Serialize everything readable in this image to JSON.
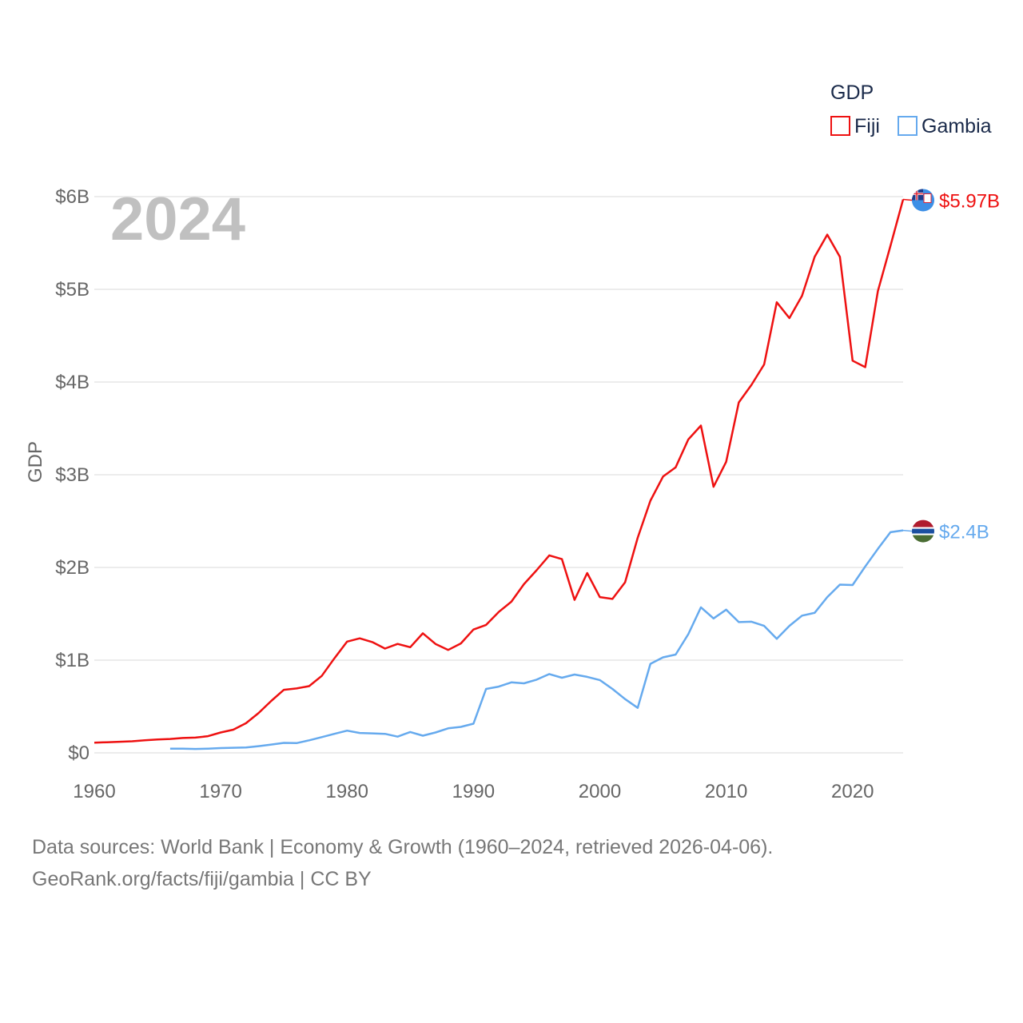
{
  "chart_data": {
    "type": "line",
    "title": "GDP",
    "current_year": "2024",
    "ylabel": "GDP",
    "xlabel": "",
    "xlim": [
      1960,
      2024
    ],
    "ylim": [
      0,
      6
    ],
    "unit": "billions USD",
    "x_ticks": [
      "1960",
      "1970",
      "1980",
      "1990",
      "2000",
      "2010",
      "2020"
    ],
    "x_tick_values": [
      1960,
      1970,
      1980,
      1990,
      2000,
      2010,
      2020
    ],
    "y_ticks": [
      "$0",
      "$1B",
      "$2B",
      "$3B",
      "$4B",
      "$5B",
      "$6B"
    ],
    "y_tick_values": [
      0,
      1,
      2,
      3,
      4,
      5,
      6
    ],
    "legend_position": "top-right",
    "series": [
      {
        "name": "Fiji",
        "color": "#ee1111",
        "end_label": "$5.97B",
        "flag_icon": "fiji-flag-icon",
        "points": [
          [
            1960,
            0.11
          ],
          [
            1961,
            0.115
          ],
          [
            1962,
            0.12
          ],
          [
            1963,
            0.125
          ],
          [
            1964,
            0.135
          ],
          [
            1965,
            0.145
          ],
          [
            1966,
            0.15
          ],
          [
            1967,
            0.16
          ],
          [
            1968,
            0.165
          ],
          [
            1969,
            0.18
          ],
          [
            1970,
            0.22
          ],
          [
            1971,
            0.25
          ],
          [
            1972,
            0.32
          ],
          [
            1973,
            0.43
          ],
          [
            1974,
            0.56
          ],
          [
            1975,
            0.68
          ],
          [
            1976,
            0.695
          ],
          [
            1977,
            0.72
          ],
          [
            1978,
            0.83
          ],
          [
            1979,
            1.02
          ],
          [
            1980,
            1.2
          ],
          [
            1981,
            1.235
          ],
          [
            1982,
            1.195
          ],
          [
            1983,
            1.125
          ],
          [
            1984,
            1.175
          ],
          [
            1985,
            1.14
          ],
          [
            1986,
            1.29
          ],
          [
            1987,
            1.175
          ],
          [
            1988,
            1.11
          ],
          [
            1989,
            1.18
          ],
          [
            1990,
            1.33
          ],
          [
            1991,
            1.38
          ],
          [
            1992,
            1.52
          ],
          [
            1993,
            1.63
          ],
          [
            1994,
            1.82
          ],
          [
            1995,
            1.97
          ],
          [
            1996,
            2.13
          ],
          [
            1997,
            2.09
          ],
          [
            1998,
            1.65
          ],
          [
            1999,
            1.94
          ],
          [
            2000,
            1.68
          ],
          [
            2001,
            1.66
          ],
          [
            2002,
            1.84
          ],
          [
            2003,
            2.32
          ],
          [
            2004,
            2.72
          ],
          [
            2005,
            2.98
          ],
          [
            2006,
            3.08
          ],
          [
            2007,
            3.38
          ],
          [
            2008,
            3.53
          ],
          [
            2009,
            2.87
          ],
          [
            2010,
            3.14
          ],
          [
            2011,
            3.78
          ],
          [
            2012,
            3.97
          ],
          [
            2013,
            4.19
          ],
          [
            2014,
            4.86
          ],
          [
            2015,
            4.69
          ],
          [
            2016,
            4.93
          ],
          [
            2017,
            5.35
          ],
          [
            2018,
            5.59
          ],
          [
            2019,
            5.35
          ],
          [
            2020,
            4.23
          ],
          [
            2021,
            4.16
          ],
          [
            2022,
            4.98
          ],
          [
            2023,
            5.47
          ],
          [
            2024,
            5.97
          ]
        ]
      },
      {
        "name": "Gambia",
        "color": "#66aaee",
        "end_label": "$2.4B",
        "flag_icon": "gambia-flag-icon",
        "points": [
          [
            1966,
            0.045
          ],
          [
            1967,
            0.046
          ],
          [
            1968,
            0.042
          ],
          [
            1969,
            0.046
          ],
          [
            1970,
            0.052
          ],
          [
            1971,
            0.055
          ],
          [
            1972,
            0.058
          ],
          [
            1973,
            0.072
          ],
          [
            1974,
            0.09
          ],
          [
            1975,
            0.108
          ],
          [
            1976,
            0.105
          ],
          [
            1977,
            0.135
          ],
          [
            1978,
            0.17
          ],
          [
            1979,
            0.205
          ],
          [
            1980,
            0.24
          ],
          [
            1981,
            0.215
          ],
          [
            1982,
            0.21
          ],
          [
            1983,
            0.205
          ],
          [
            1984,
            0.175
          ],
          [
            1985,
            0.225
          ],
          [
            1986,
            0.185
          ],
          [
            1987,
            0.22
          ],
          [
            1988,
            0.265
          ],
          [
            1989,
            0.28
          ],
          [
            1990,
            0.315
          ],
          [
            1991,
            0.69
          ],
          [
            1992,
            0.715
          ],
          [
            1993,
            0.76
          ],
          [
            1994,
            0.75
          ],
          [
            1995,
            0.79
          ],
          [
            1996,
            0.85
          ],
          [
            1997,
            0.81
          ],
          [
            1998,
            0.845
          ],
          [
            1999,
            0.82
          ],
          [
            2000,
            0.785
          ],
          [
            2001,
            0.69
          ],
          [
            2002,
            0.58
          ],
          [
            2003,
            0.485
          ],
          [
            2004,
            0.96
          ],
          [
            2005,
            1.03
          ],
          [
            2006,
            1.06
          ],
          [
            2007,
            1.28
          ],
          [
            2008,
            1.57
          ],
          [
            2009,
            1.45
          ],
          [
            2010,
            1.545
          ],
          [
            2011,
            1.41
          ],
          [
            2012,
            1.415
          ],
          [
            2013,
            1.37
          ],
          [
            2014,
            1.23
          ],
          [
            2015,
            1.37
          ],
          [
            2016,
            1.48
          ],
          [
            2017,
            1.51
          ],
          [
            2018,
            1.68
          ],
          [
            2019,
            1.815
          ],
          [
            2020,
            1.81
          ],
          [
            2021,
            2.01
          ],
          [
            2022,
            2.2
          ],
          [
            2023,
            2.38
          ],
          [
            2024,
            2.4
          ]
        ]
      }
    ]
  },
  "source": {
    "line1": "Data sources: World Bank | Economy & Growth (1960–2024, retrieved 2026-04-06).",
    "line2": "GeoRank.org/facts/fiji/gambia | CC BY"
  }
}
